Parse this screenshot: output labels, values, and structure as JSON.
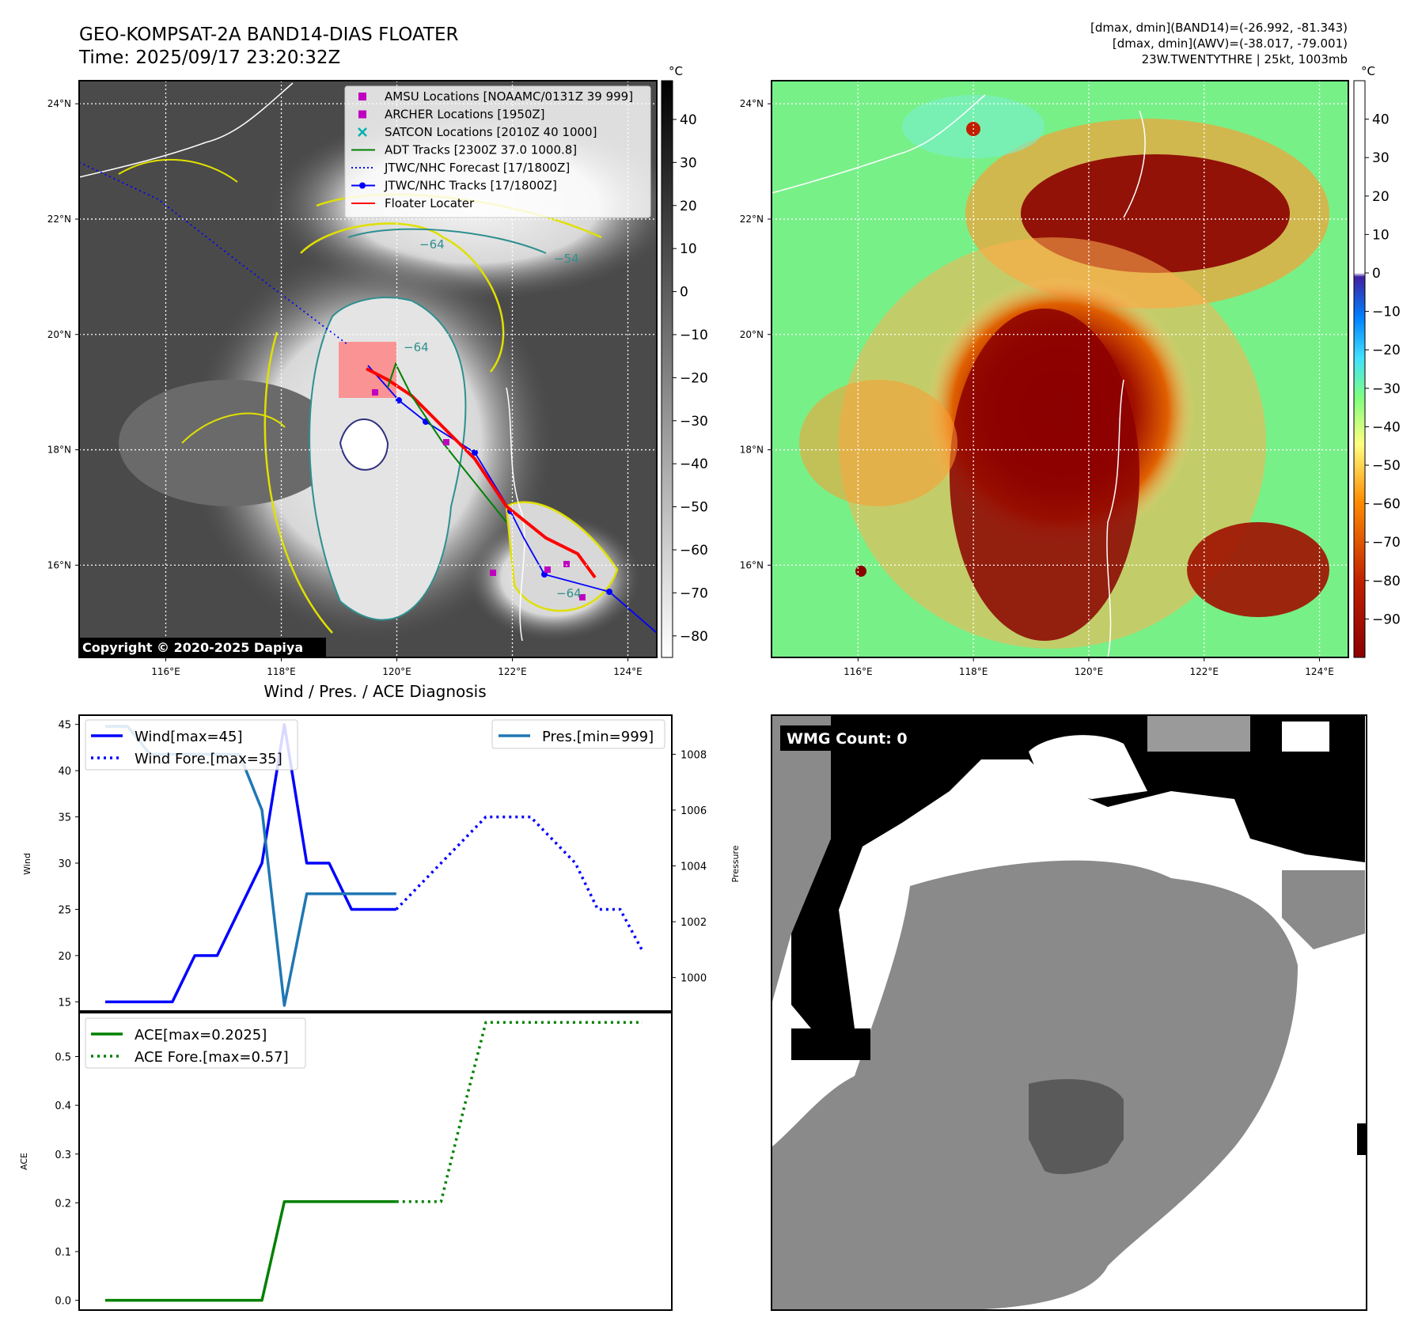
{
  "header": {
    "title_line1": "GEO-KOMPSAT-2A BAND14-DIAS FLOATER",
    "title_line2": "Time: 2025/09/17 23:20:32Z",
    "info_line1": "[dmax, dmin](BAND14)=(-26.992, -81.343)",
    "info_line2": "[dmax, dmin](AWV)=(-38.017, -79.001)",
    "info_line3": "23W.TWENTYTHRE | 25kt, 1003mb"
  },
  "map_axes": {
    "lon_ticks": [
      "116°E",
      "118°E",
      "120°E",
      "122°E",
      "124°E"
    ],
    "lon_values": [
      116,
      118,
      120,
      122,
      124
    ],
    "lat_ticks": [
      "24°N",
      "22°N",
      "20°N",
      "18°N",
      "16°N"
    ],
    "lat_values": [
      24,
      22,
      20,
      18,
      16
    ],
    "lon_range": [
      114.5,
      124.5
    ],
    "lat_range": [
      14.4,
      24.4
    ]
  },
  "ir_panel": {
    "colorbar_unit": "°C",
    "colorbar_ticks": [
      "40",
      "30",
      "20",
      "10",
      "0",
      "−10",
      "−20",
      "−30",
      "−40",
      "−50",
      "−60",
      "−70",
      "−80"
    ],
    "colorbar_values": [
      40,
      30,
      20,
      10,
      0,
      -10,
      -20,
      -30,
      -40,
      -50,
      -60,
      -70,
      -80
    ],
    "colorbar_range": [
      -85,
      49
    ],
    "contour_labels": [
      "−64",
      "−54",
      "−64",
      "−64"
    ],
    "copyright": "Copyright © 2020-2025 Dapiya",
    "legend": [
      {
        "label": "AMSU Locations [NOAAMC/0131Z 39 999]",
        "marker": "square",
        "color": "#c000c0"
      },
      {
        "label": "ARCHER Locations [1950Z]",
        "marker": "square",
        "color": "#c000c0"
      },
      {
        "label": "SATCON Locations [2010Z 40 1000]",
        "marker": "x",
        "color": "#00b0b0"
      },
      {
        "label": "ADT Tracks [2300Z 37.0 1000.8]",
        "marker": "line",
        "color": "#008000"
      },
      {
        "label": "JTWC/NHC Forecast [17/1800Z]",
        "marker": "dotted",
        "color": "#0000ff"
      },
      {
        "label": "JTWC/NHC Tracks [17/1800Z]",
        "marker": "line-dot",
        "color": "#0000ff"
      },
      {
        "label": "Floater Locater",
        "marker": "line",
        "color": "#ff0000"
      }
    ]
  },
  "wv_panel": {
    "colorbar_unit": "°C",
    "colorbar_ticks": [
      "40",
      "30",
      "20",
      "10",
      "0",
      "−10",
      "−20",
      "−30",
      "−40",
      "−50",
      "−60",
      "−70",
      "−80",
      "−90"
    ],
    "colorbar_values": [
      40,
      30,
      20,
      10,
      0,
      -10,
      -20,
      -30,
      -40,
      -50,
      -60,
      -70,
      -80,
      -90
    ],
    "colorbar_range": [
      -100,
      50
    ]
  },
  "wmg_panel": {
    "label": "WMG Count: 0"
  },
  "chart_data": [
    {
      "type": "line",
      "title": "Wind / Pres. / ACE Diagnosis",
      "ylabel": "Wind",
      "ylabel_right": "Pressure",
      "ylim": [
        14,
        46
      ],
      "ylim_right": [
        998.8,
        1009.4
      ],
      "x_count": 25,
      "yticks": [
        15,
        20,
        25,
        30,
        35,
        40,
        45
      ],
      "yticks_right": [
        1000,
        1002,
        1004,
        1006,
        1008
      ],
      "series": [
        {
          "name": "Wind[max=45]",
          "axis": "left",
          "color": "#0000ff",
          "style": "solid",
          "x": [
            0,
            1,
            2,
            3,
            4,
            5,
            6,
            7,
            8,
            9,
            10,
            11,
            12,
            13
          ],
          "values": [
            15,
            15,
            15,
            15,
            20,
            20,
            25,
            30,
            45,
            30,
            30,
            25,
            25,
            25
          ]
        },
        {
          "name": "Wind Fore.[max=35]",
          "axis": "left",
          "color": "#0000ff",
          "style": "dotted",
          "x": [
            13,
            14,
            15,
            16,
            17,
            18,
            19,
            20,
            21,
            22,
            23,
            24
          ],
          "values": [
            25,
            27.5,
            30,
            32.5,
            35,
            35,
            35,
            32.5,
            30,
            25,
            25,
            20.5
          ]
        },
        {
          "name": "Pres.[min=999]",
          "axis": "right",
          "color": "#1f77b4",
          "style": "solid",
          "x": [
            0,
            1,
            2,
            3,
            4,
            5,
            6,
            7,
            8,
            9,
            10,
            11,
            12,
            13
          ],
          "values": [
            1009,
            1009,
            1008,
            1008,
            1008,
            1008,
            1008,
            1006,
            999,
            1003,
            1003,
            1003,
            1003,
            1003
          ]
        }
      ]
    },
    {
      "type": "line",
      "ylabel": "ACE",
      "ylim": [
        -0.02,
        0.59
      ],
      "yticks": [
        0.0,
        0.1,
        0.2,
        0.3,
        0.4,
        0.5
      ],
      "ytick_labels": [
        "0.0",
        "0.1",
        "0.2",
        "0.3",
        "0.4",
        "0.5"
      ],
      "series": [
        {
          "name": "ACE[max=0.2025]",
          "color": "#008000",
          "style": "solid",
          "x": [
            0,
            1,
            2,
            3,
            4,
            5,
            6,
            7,
            8,
            9,
            10,
            11,
            12,
            13
          ],
          "values": [
            0,
            0,
            0,
            0,
            0,
            0,
            0,
            0,
            0.2025,
            0.2025,
            0.2025,
            0.2025,
            0.2025,
            0.2025
          ]
        },
        {
          "name": "ACE Fore.[max=0.57]",
          "color": "#008000",
          "style": "dotted",
          "x": [
            13,
            14,
            15,
            16,
            17,
            18,
            19,
            20,
            21,
            22,
            23,
            24
          ],
          "values": [
            0.2025,
            0.2025,
            0.2025,
            0.39,
            0.57,
            0.57,
            0.57,
            0.57,
            0.57,
            0.57,
            0.57,
            0.57
          ]
        }
      ]
    }
  ]
}
